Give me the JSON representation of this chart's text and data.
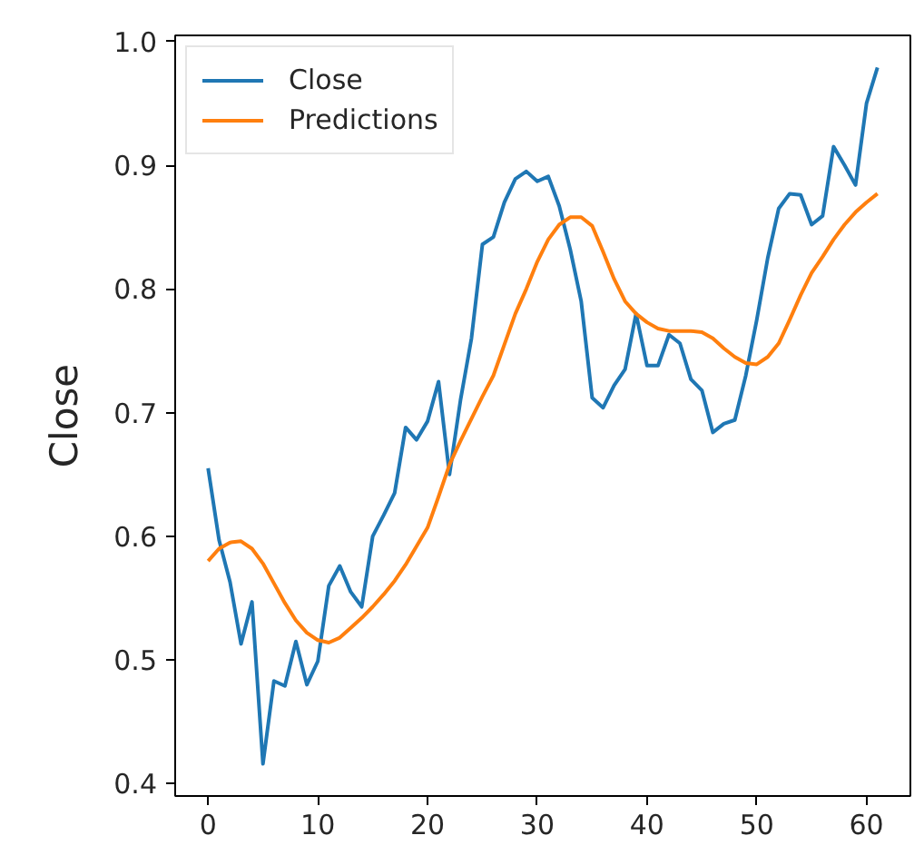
{
  "chart_data": {
    "type": "line",
    "ylabel": "Close",
    "x": [
      0,
      1,
      2,
      3,
      4,
      5,
      6,
      7,
      8,
      9,
      10,
      11,
      12,
      13,
      14,
      15,
      16,
      17,
      18,
      19,
      20,
      21,
      22,
      23,
      24,
      25,
      26,
      27,
      28,
      29,
      30,
      31,
      32,
      33,
      34,
      35,
      36,
      37,
      38,
      39,
      40,
      41,
      42,
      43,
      44,
      45,
      46,
      47,
      48,
      49,
      50,
      51,
      52,
      53,
      54,
      55,
      56,
      57,
      58,
      59,
      60,
      61
    ],
    "series": [
      {
        "name": "Close",
        "color": "#1f77b4",
        "values": [
          0.655,
          0.597,
          0.563,
          0.513,
          0.547,
          0.416,
          0.483,
          0.479,
          0.515,
          0.48,
          0.499,
          0.56,
          0.576,
          0.555,
          0.543,
          0.6,
          0.617,
          0.635,
          0.688,
          0.678,
          0.693,
          0.725,
          0.65,
          0.71,
          0.76,
          0.836,
          0.842,
          0.87,
          0.889,
          0.895,
          0.887,
          0.891,
          0.867,
          0.832,
          0.79,
          0.712,
          0.704,
          0.722,
          0.735,
          0.78,
          0.738,
          0.738,
          0.763,
          0.756,
          0.727,
          0.718,
          0.684,
          0.691,
          0.694,
          0.73,
          0.775,
          0.825,
          0.865,
          0.877,
          0.876,
          0.852,
          0.859,
          0.915,
          0.9,
          0.884,
          0.95,
          0.979
        ]
      },
      {
        "name": "Predictions",
        "color": "#ff7f0e",
        "values": [
          0.58,
          0.59,
          0.595,
          0.596,
          0.59,
          0.578,
          0.562,
          0.546,
          0.532,
          0.522,
          0.516,
          0.514,
          0.518,
          0.526,
          0.534,
          0.543,
          0.553,
          0.564,
          0.577,
          0.592,
          0.607,
          0.632,
          0.658,
          0.677,
          0.695,
          0.713,
          0.73,
          0.755,
          0.78,
          0.8,
          0.822,
          0.84,
          0.852,
          0.858,
          0.858,
          0.851,
          0.83,
          0.808,
          0.79,
          0.78,
          0.773,
          0.768,
          0.766,
          0.766,
          0.766,
          0.765,
          0.76,
          0.752,
          0.745,
          0.74,
          0.739,
          0.745,
          0.756,
          0.775,
          0.795,
          0.813,
          0.826,
          0.84,
          0.852,
          0.862,
          0.87,
          0.877
        ]
      }
    ],
    "xlim": [
      -3,
      64
    ],
    "ylim": [
      0.39,
      1.005
    ],
    "xticks": [
      0,
      10,
      20,
      30,
      40,
      50,
      60
    ],
    "yticks": [
      {
        "value": 0.4,
        "label": "0.4"
      },
      {
        "value": 0.5,
        "label": "0.5"
      },
      {
        "value": 0.6,
        "label": "0.6"
      },
      {
        "value": 0.7,
        "label": "0.7"
      },
      {
        "value": 0.8,
        "label": "0.8"
      },
      {
        "value": 0.9,
        "label": "0.9"
      },
      {
        "value": 1.0,
        "label": "1.0"
      }
    ],
    "legend": "top left",
    "line_style": "solid"
  }
}
